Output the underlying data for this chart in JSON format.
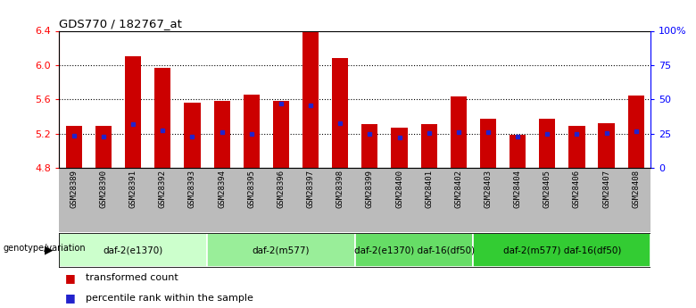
{
  "title": "GDS770 / 182767_at",
  "samples": [
    "GSM28389",
    "GSM28390",
    "GSM28391",
    "GSM28392",
    "GSM28393",
    "GSM28394",
    "GSM28395",
    "GSM28396",
    "GSM28397",
    "GSM28398",
    "GSM28399",
    "GSM28400",
    "GSM28401",
    "GSM28402",
    "GSM28403",
    "GSM28404",
    "GSM28405",
    "GSM28406",
    "GSM28407",
    "GSM28408"
  ],
  "bar_values": [
    5.29,
    5.29,
    6.1,
    5.97,
    5.56,
    5.58,
    5.65,
    5.58,
    6.38,
    6.08,
    5.31,
    5.27,
    5.31,
    5.63,
    5.37,
    5.19,
    5.37,
    5.29,
    5.32,
    5.64
  ],
  "percentile_values": [
    5.18,
    5.16,
    5.31,
    5.24,
    5.17,
    5.22,
    5.2,
    5.55,
    5.53,
    5.32,
    5.2,
    5.15,
    5.21,
    5.22,
    5.22,
    5.17,
    5.2,
    5.2,
    5.21,
    5.23
  ],
  "ymin": 4.8,
  "ymax": 6.4,
  "yticks": [
    4.8,
    5.2,
    5.6,
    6.0,
    6.4
  ],
  "grid_lines": [
    5.2,
    5.6,
    6.0
  ],
  "right_yticks": [
    0,
    25,
    50,
    75,
    100
  ],
  "right_ytick_labels": [
    "0",
    "25",
    "50",
    "75",
    "100%"
  ],
  "bar_color": "#cc0000",
  "marker_color": "#2222cc",
  "bar_width": 0.55,
  "groups": [
    {
      "label": "daf-2(e1370)",
      "start": 0,
      "end": 5,
      "color": "#ccffcc"
    },
    {
      "label": "daf-2(m577)",
      "start": 5,
      "end": 10,
      "color": "#99ee99"
    },
    {
      "label": "daf-2(e1370) daf-16(df50)",
      "start": 10,
      "end": 14,
      "color": "#66dd66"
    },
    {
      "label": "daf-2(m577) daf-16(df50)",
      "start": 14,
      "end": 20,
      "color": "#33cc33"
    }
  ],
  "xtick_bg_color": "#bbbbbb",
  "legend_items": [
    {
      "label": "transformed count",
      "color": "#cc0000"
    },
    {
      "label": "percentile rank within the sample",
      "color": "#2222cc"
    }
  ],
  "genotype_label": "genotype/variation"
}
